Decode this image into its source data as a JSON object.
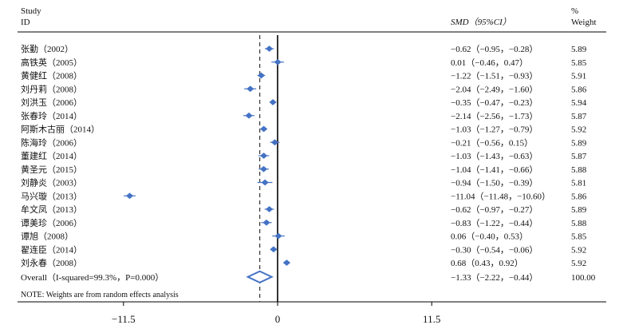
{
  "header": {
    "study_line1": "Study",
    "study_line2": "ID",
    "effect_label": "SMD（95%CI）",
    "weight_line1": "%",
    "weight_line2": "Weight"
  },
  "note": "NOTE: Weights are from random effects analysis",
  "colors": {
    "marker": "#4472c4",
    "axis": "#000000",
    "dashed": "#333333"
  },
  "chart_data": {
    "type": "forest",
    "xlim": [
      -14.5,
      15.5
    ],
    "xticks": [
      -11.5,
      0,
      11.5
    ],
    "xtick_labels": [
      "−11.5",
      "0",
      "11.5"
    ],
    "null_line": 0,
    "overall_line": -1.33,
    "studies": [
      {
        "label": "张勤（2002）",
        "smd": -0.62,
        "lo": -0.95,
        "hi": -0.28,
        "ci_text": "−0.62（−0.95，−0.28）",
        "weight": "5.89"
      },
      {
        "label": "高铁英（2005）",
        "smd": 0.01,
        "lo": -0.46,
        "hi": 0.47,
        "ci_text": "0.01（−0.46，0.47）",
        "weight": "5.85"
      },
      {
        "label": "黄健红（2008）",
        "smd": -1.22,
        "lo": -1.51,
        "hi": -0.93,
        "ci_text": "−1.22（−1.51，−0.93）",
        "weight": "5.91"
      },
      {
        "label": "刘丹莉（2008）",
        "smd": -2.04,
        "lo": -2.49,
        "hi": -1.6,
        "ci_text": "−2.04（−2.49，−1.60）",
        "weight": "5.86"
      },
      {
        "label": "刘洪玉（2006）",
        "smd": -0.35,
        "lo": -0.47,
        "hi": -0.23,
        "ci_text": "−0.35（−0.47，−0.23）",
        "weight": "5.94"
      },
      {
        "label": "张春玲（2014）",
        "smd": -2.14,
        "lo": -2.56,
        "hi": -1.73,
        "ci_text": "−2.14（−2.56，−1.73）",
        "weight": "5.87"
      },
      {
        "label": "阿斯木古丽（2014）",
        "smd": -1.03,
        "lo": -1.27,
        "hi": -0.79,
        "ci_text": "−1.03（−1.27，−0.79）",
        "weight": "5.92"
      },
      {
        "label": "陈海玲（2006）",
        "smd": -0.21,
        "lo": -0.56,
        "hi": 0.15,
        "ci_text": "−0.21（−0.56，0.15）",
        "weight": "5.89"
      },
      {
        "label": "董建红（2014）",
        "smd": -1.03,
        "lo": -1.43,
        "hi": -0.63,
        "ci_text": "−1.03（−1.43，−0.63）",
        "weight": "5.87"
      },
      {
        "label": "黄圣元（2015）",
        "smd": -1.04,
        "lo": -1.41,
        "hi": -0.66,
        "ci_text": "−1.04（−1.41，−0.66）",
        "weight": "5.88"
      },
      {
        "label": "刘静炎（2003）",
        "smd": -0.94,
        "lo": -1.5,
        "hi": -0.39,
        "ci_text": "−0.94（−1.50，−0.39）",
        "weight": "5.81"
      },
      {
        "label": "马兴璇（2013）",
        "smd": -11.04,
        "lo": -11.48,
        "hi": -10.6,
        "ci_text": "−11.04（−11.48，−10.60）",
        "weight": "5.86"
      },
      {
        "label": "牟文凤（2013）",
        "smd": -0.62,
        "lo": -0.97,
        "hi": -0.27,
        "ci_text": "−0.62（−0.97，−0.27）",
        "weight": "5.89"
      },
      {
        "label": "谭美珍（2006）",
        "smd": -0.83,
        "lo": -1.22,
        "hi": -0.44,
        "ci_text": "−0.83（−1.22，−0.44）",
        "weight": "5.88"
      },
      {
        "label": "谭旭（2008）",
        "smd": 0.06,
        "lo": -0.4,
        "hi": 0.53,
        "ci_text": "0.06（−0.40，0.53）",
        "weight": "5.85"
      },
      {
        "label": "翟连臣（2014）",
        "smd": -0.3,
        "lo": -0.54,
        "hi": -0.06,
        "ci_text": "−0.30（−0.54，−0.06）",
        "weight": "5.92"
      },
      {
        "label": "刘永春（2008）",
        "smd": 0.68,
        "lo": 0.43,
        "hi": 0.92,
        "ci_text": "0.68（0.43，0.92）",
        "weight": "5.92"
      }
    ],
    "overall": {
      "label": "Overall（I-squared=99.3%，P=0.000）",
      "smd": -1.33,
      "lo": -2.22,
      "hi": -0.44,
      "ci_text": "−1.33（−2.22，−0.44）",
      "weight": "100.00"
    }
  }
}
